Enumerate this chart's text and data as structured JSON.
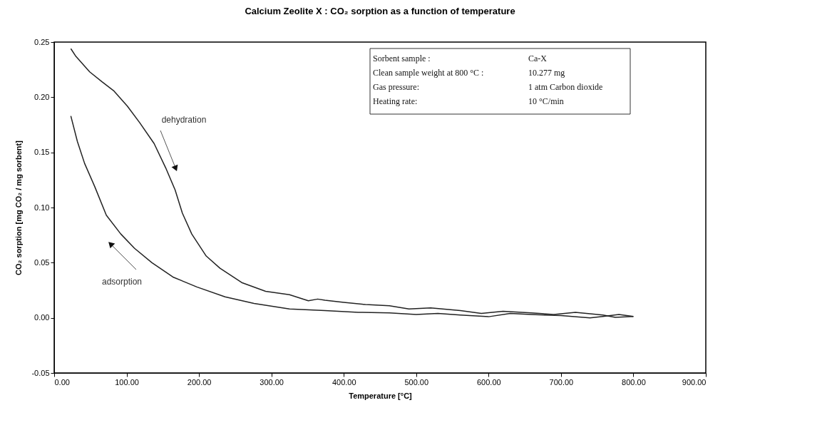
{
  "chart_data": {
    "type": "line",
    "title": "Calcium Zeolite X : CO₂ sorption as a function of temperature",
    "xlabel": "Temperature [°C]",
    "ylabel": "CO₂ sorption [mg CO₂ / mg sorbent]",
    "xlim": [
      0,
      900
    ],
    "ylim": [
      -0.05,
      0.25
    ],
    "xticks": [
      {
        "value": 0,
        "label": "0.00"
      },
      {
        "value": 100,
        "label": "100.00"
      },
      {
        "value": 200,
        "label": "200.00"
      },
      {
        "value": 300,
        "label": "300.00"
      },
      {
        "value": 400,
        "label": "400.00"
      },
      {
        "value": 500,
        "label": "500.00"
      },
      {
        "value": 600,
        "label": "600.00"
      },
      {
        "value": 700,
        "label": "700.00"
      },
      {
        "value": 800,
        "label": "800.00"
      },
      {
        "value": 900,
        "label": "900.00"
      }
    ],
    "yticks": [
      {
        "value": -0.05,
        "label": "-0.05"
      },
      {
        "value": 0,
        "label": "0.00"
      },
      {
        "value": 0.05,
        "label": "0.05"
      },
      {
        "value": 0.1,
        "label": "0.10"
      },
      {
        "value": 0.15,
        "label": "0.15"
      },
      {
        "value": 0.2,
        "label": "0.20"
      },
      {
        "value": 0.25,
        "label": "0.25"
      }
    ],
    "marker": "none",
    "line_style": "solid",
    "series": [
      {
        "color": "#222222",
        "x": [
          23,
          30,
          49,
          66,
          82,
          101,
          118,
          138,
          154,
          167,
          177,
          190,
          210,
          229,
          259,
          292,
          325,
          351,
          364,
          374,
          400,
          430,
          463,
          490,
          520,
          561,
          590,
          620,
          659,
          690,
          720,
          758,
          775,
          800
        ],
        "values": [
          0.244,
          0.237,
          0.223,
          0.214,
          0.206,
          0.192,
          0.177,
          0.158,
          0.136,
          0.116,
          0.095,
          0.076,
          0.056,
          0.045,
          0.032,
          0.024,
          0.021,
          0.0155,
          0.017,
          0.016,
          0.014,
          0.012,
          0.011,
          0.008,
          0.009,
          0.0065,
          0.004,
          0.006,
          0.0045,
          0.003,
          0.005,
          0.0026,
          0.0005,
          0.0013
        ]
      },
      {
        "color": "#222222",
        "x": [
          23,
          32,
          42,
          56,
          72,
          92,
          111,
          135,
          164,
          197,
          236,
          276,
          325,
          374,
          420,
          463,
          500,
          530,
          561,
          600,
          630,
          659,
          700,
          740,
          758,
          780,
          800
        ],
        "values": [
          0.183,
          0.16,
          0.14,
          0.119,
          0.093,
          0.076,
          0.063,
          0.05,
          0.037,
          0.028,
          0.019,
          0.013,
          0.008,
          0.0065,
          0.005,
          0.0045,
          0.003,
          0.004,
          0.0026,
          0.001,
          0.004,
          0.003,
          0.002,
          0.0,
          0.0013,
          0.003,
          0.0013
        ]
      }
    ],
    "annotations": [
      "dehydration",
      "adsorption",
      "Sorbent sample :",
      "Ca-X",
      "Clean sample weight at 800 °C :",
      "10.277 mg",
      "Gas pressure:",
      "1 atm Carbon dioxide",
      "Heating rate:",
      "10 °C/min"
    ]
  }
}
